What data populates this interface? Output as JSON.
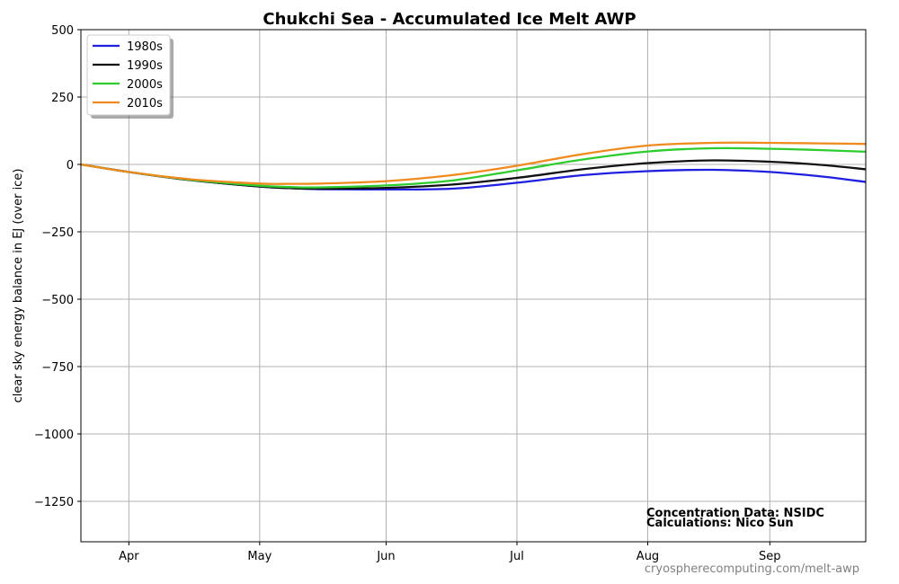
{
  "chart_data": {
    "type": "line",
    "title": "Chukchi Sea - Accumulated Ice Melt AWP",
    "ylabel": "clear sky energy balance in  EJ (over ice)",
    "xlabel": "",
    "x_tick_labels": [
      "Apr",
      "May",
      "Jun",
      "Jul",
      "Aug",
      "Sep"
    ],
    "x_tick_days": [
      91,
      121,
      150,
      180,
      210,
      238
    ],
    "xlim_days": [
      80,
      260
    ],
    "ylim": [
      -1400,
      500
    ],
    "y_ticks": [
      500,
      250,
      0,
      -250,
      -500,
      -750,
      -1000,
      -1250
    ],
    "y_tick_labels": [
      "500",
      "250",
      "0",
      "−250",
      "−500",
      "−750",
      "−1000",
      "−1250"
    ],
    "grid": true,
    "legend_position": "top-left",
    "x_days": [
      80,
      91,
      105,
      121,
      128,
      135,
      150,
      165,
      180,
      195,
      210,
      225,
      238,
      250,
      260
    ],
    "series": [
      {
        "name": "1980s",
        "color": "#1f1fe0",
        "values": [
          0,
          -28,
          -58,
          -82,
          -88,
          -92,
          -93,
          -90,
          -68,
          -40,
          -25,
          -20,
          -28,
          -45,
          -65
        ]
      },
      {
        "name": "1990s",
        "color": "#111111",
        "values": [
          0,
          -28,
          -58,
          -82,
          -88,
          -90,
          -87,
          -75,
          -50,
          -18,
          5,
          15,
          10,
          -2,
          -18
        ]
      },
      {
        "name": "2000s",
        "color": "#2ecc2e",
        "values": [
          0,
          -28,
          -57,
          -79,
          -84,
          -85,
          -78,
          -60,
          -22,
          18,
          48,
          60,
          58,
          53,
          47
        ]
      },
      {
        "name": "2010s",
        "color": "#ef8a1e",
        "values": [
          0,
          -28,
          -55,
          -71,
          -72,
          -71,
          -62,
          -40,
          -5,
          38,
          70,
          80,
          80,
          78,
          76
        ]
      }
    ]
  },
  "annotations": {
    "concentration": "Concentration Data: NSIDC",
    "calculations": "Calculations: Nico Sun",
    "source": "cryospherecomputing.com/melt-awp"
  }
}
